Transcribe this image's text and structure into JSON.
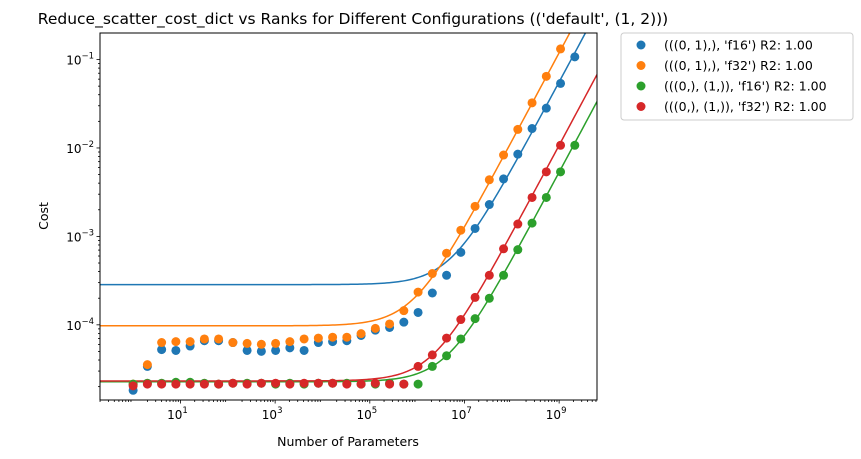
{
  "chart_data": {
    "type": "scatter",
    "title": "Reduce_scatter_cost_dict vs Ranks for Different Configurations (('default', (1, 2)))",
    "xlabel": "Number of Parameters",
    "ylabel": "Cost",
    "xscale": "log",
    "yscale": "log",
    "xlim_exp": [
      -0.7,
      9.8
    ],
    "ylim_exp": [
      -4.85,
      -0.7
    ],
    "x_ticks": [
      {
        "base": "10",
        "exp": "1",
        "value_exp": 1
      },
      {
        "base": "10",
        "exp": "3",
        "value_exp": 3
      },
      {
        "base": "10",
        "exp": "5",
        "value_exp": 5
      },
      {
        "base": "10",
        "exp": "7",
        "value_exp": 7
      },
      {
        "base": "10",
        "exp": "9",
        "value_exp": 9
      }
    ],
    "y_ticks": [
      {
        "base": "10",
        "exp": "−4",
        "value_exp": -4
      },
      {
        "base": "10",
        "exp": "−3",
        "value_exp": -3
      },
      {
        "base": "10",
        "exp": "−2",
        "value_exp": -2
      },
      {
        "base": "10",
        "exp": "−1",
        "value_exp": -1
      }
    ],
    "legend_position": "outside-top-right",
    "series": [
      {
        "name": "(((0, 1),), 'f16') R2: 1.00",
        "color": "#1f77b4",
        "x_exp": [
          0,
          0.301,
          0.602,
          0.903,
          1.204,
          1.505,
          1.806,
          2.107,
          2.408,
          2.709,
          3.01,
          3.311,
          3.612,
          3.913,
          4.214,
          4.515,
          4.816,
          5.117,
          5.418,
          5.719,
          6.02,
          6.321,
          6.622,
          6.923,
          7.224,
          7.525,
          7.826,
          8.127,
          8.428,
          8.729,
          9.03,
          9.331
        ],
        "y_exp": [
          -4.74,
          -4.47,
          -4.28,
          -4.29,
          -4.24,
          -4.18,
          -4.18,
          -4.2,
          -4.29,
          -4.3,
          -4.29,
          -4.26,
          -4.29,
          -4.2,
          -4.19,
          -4.18,
          -4.12,
          -4.06,
          -4.03,
          -3.97,
          -3.86,
          -3.64,
          -3.44,
          -3.18,
          -2.91,
          -2.64,
          -2.35,
          -2.07,
          -1.78,
          -1.55,
          -1.27,
          -0.97
        ],
        "fit_a": 0.000285,
        "fit_b": 5.55e-11
      },
      {
        "name": "(((0, 1),), 'f32') R2: 1.00",
        "color": "#ff7f0e",
        "x_exp": [
          0,
          0.301,
          0.602,
          0.903,
          1.204,
          1.505,
          1.806,
          2.107,
          2.408,
          2.709,
          3.01,
          3.311,
          3.612,
          3.913,
          4.214,
          4.515,
          4.816,
          5.117,
          5.418,
          5.719,
          6.02,
          6.321,
          6.622,
          6.923,
          7.224,
          7.525,
          7.826,
          8.127,
          8.428,
          8.729,
          9.03
        ],
        "y_exp": [
          -4.67,
          -4.45,
          -4.2,
          -4.19,
          -4.19,
          -4.16,
          -4.16,
          -4.2,
          -4.21,
          -4.22,
          -4.21,
          -4.19,
          -4.16,
          -4.15,
          -4.14,
          -4.14,
          -4.1,
          -4.04,
          -3.99,
          -3.84,
          -3.63,
          -3.42,
          -3.19,
          -2.93,
          -2.66,
          -2.36,
          -2.08,
          -1.79,
          -1.49,
          -1.19,
          -0.88
        ],
        "fit_a": 9.75e-05,
        "fit_b": 1.19e-10
      },
      {
        "name": "(((0,), (1,)), 'f16') R2: 1.00",
        "color": "#2ca02c",
        "x_exp": [
          0,
          0.301,
          0.602,
          0.903,
          1.204,
          1.505,
          1.806,
          2.107,
          2.408,
          2.709,
          3.01,
          3.311,
          3.612,
          3.913,
          4.214,
          4.515,
          4.816,
          5.117,
          5.418,
          5.719,
          6.02,
          6.321,
          6.622,
          6.923,
          7.224,
          7.525,
          7.826,
          8.127,
          8.428,
          8.729,
          9.03,
          9.331
        ],
        "y_exp": [
          -4.67,
          -4.66,
          -4.66,
          -4.65,
          -4.65,
          -4.66,
          -4.67,
          -4.66,
          -4.66,
          -4.66,
          -4.67,
          -4.66,
          -4.67,
          -4.66,
          -4.66,
          -4.66,
          -4.67,
          -4.67,
          -4.66,
          -4.67,
          -4.67,
          -4.47,
          -4.35,
          -4.16,
          -3.93,
          -3.7,
          -3.44,
          -3.15,
          -2.85,
          -2.56,
          -2.27,
          -1.97
        ],
        "fit_a": 2.27e-05,
        "fit_b": 5.3e-12
      },
      {
        "name": "(((0,), (1,)), 'f32') R2: 1.00",
        "color": "#d62728",
        "x_exp": [
          0,
          0.301,
          0.602,
          0.903,
          1.204,
          1.505,
          1.806,
          2.107,
          2.408,
          2.709,
          3.01,
          3.311,
          3.612,
          3.913,
          4.214,
          4.515,
          4.816,
          5.117,
          5.418,
          5.719,
          6.02,
          6.321,
          6.622,
          6.923,
          7.224,
          7.525,
          7.826,
          8.127,
          8.428,
          8.729,
          9.03
        ],
        "y_exp": [
          -4.69,
          -4.67,
          -4.67,
          -4.67,
          -4.67,
          -4.67,
          -4.67,
          -4.66,
          -4.67,
          -4.66,
          -4.66,
          -4.67,
          -4.66,
          -4.66,
          -4.66,
          -4.67,
          -4.67,
          -4.66,
          -4.67,
          -4.67,
          -4.47,
          -4.34,
          -4.15,
          -3.94,
          -3.69,
          -3.44,
          -3.14,
          -2.86,
          -2.56,
          -2.27,
          -1.97
        ],
        "fit_a": 2.32e-05,
        "fit_b": 1.07e-11
      }
    ]
  }
}
